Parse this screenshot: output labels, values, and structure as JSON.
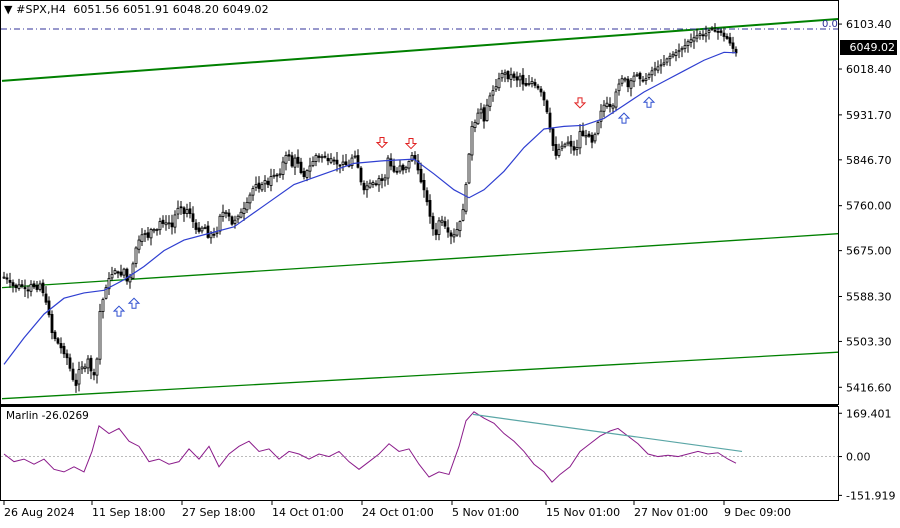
{
  "header": {
    "symbol_tf": "#SPX,H4",
    "ohlc": "6051.56 6051.91 6048.20 6049.02"
  },
  "fib_label": "0.0",
  "current_price_label": "6049.02",
  "indicator": {
    "label": "Marlin -26.0269"
  },
  "colors": {
    "background": "#ffffff",
    "candles": "#000000",
    "ma_line": "#2f3fd1",
    "channel": "#008000",
    "indicator_line": "#8b1c8b",
    "divergence_line": "#5aa6a6",
    "fib_line": "#30309a",
    "arrow_up": "#3050d0",
    "arrow_down": "#e02020"
  },
  "chart_data": [
    {
      "type": "candlestick",
      "name": "#SPX,H4",
      "y_ticks": [
        6103.4,
        6018.4,
        5931.7,
        5846.7,
        5760.0,
        5675.0,
        5588.3,
        5503.3,
        5416.6
      ],
      "y_tick_labels": [
        "6103.40",
        "6018.40",
        "5931.70",
        "5846.70",
        "5760.00",
        "5675.00",
        "5588.30",
        "5503.30",
        "5416.60"
      ],
      "ylim": [
        5385,
        6130
      ],
      "x_tick_labels": [
        "26 Aug 2024",
        "11 Sep 18:00",
        "27 Sep 18:00",
        "14 Oct 01:00",
        "24 Oct 01:00",
        "5 Nov 01:00",
        "15 Nov 01:00",
        "27 Nov 01:00",
        "9 Dec 09:00"
      ],
      "close_path": [
        [
          0,
          5625
        ],
        [
          4,
          5620
        ],
        [
          8,
          5610
        ],
        [
          12,
          5605
        ],
        [
          16,
          5612
        ],
        [
          20,
          5604
        ],
        [
          24,
          5600
        ],
        [
          28,
          5615
        ],
        [
          32,
          5598
        ],
        [
          36,
          5612
        ],
        [
          40,
          5590
        ],
        [
          44,
          5565
        ],
        [
          48,
          5520
        ],
        [
          52,
          5505
        ],
        [
          56,
          5495
        ],
        [
          60,
          5480
        ],
        [
          64,
          5470
        ],
        [
          68,
          5435
        ],
        [
          72,
          5420
        ],
        [
          76,
          5460
        ],
        [
          80,
          5450
        ],
        [
          84,
          5470
        ],
        [
          88,
          5440
        ],
        [
          92,
          5440
        ],
        [
          96,
          5560
        ],
        [
          100,
          5590
        ],
        [
          104,
          5620
        ],
        [
          108,
          5630
        ],
        [
          112,
          5640
        ],
        [
          116,
          5625
        ],
        [
          120,
          5640
        ],
        [
          124,
          5610
        ],
        [
          128,
          5640
        ],
        [
          132,
          5680
        ],
        [
          136,
          5700
        ],
        [
          140,
          5710
        ],
        [
          144,
          5700
        ],
        [
          148,
          5720
        ],
        [
          152,
          5710
        ],
        [
          156,
          5730
        ],
        [
          160,
          5725
        ],
        [
          164,
          5730
        ],
        [
          168,
          5720
        ],
        [
          172,
          5750
        ],
        [
          176,
          5760
        ],
        [
          180,
          5745
        ],
        [
          184,
          5755
        ],
        [
          188,
          5735
        ],
        [
          192,
          5715
        ],
        [
          196,
          5710
        ],
        [
          200,
          5725
        ],
        [
          204,
          5700
        ],
        [
          208,
          5710
        ],
        [
          212,
          5700
        ],
        [
          216,
          5740
        ],
        [
          220,
          5750
        ],
        [
          224,
          5745
        ],
        [
          228,
          5725
        ],
        [
          232,
          5735
        ],
        [
          236,
          5745
        ],
        [
          240,
          5755
        ],
        [
          244,
          5770
        ],
        [
          248,
          5790
        ],
        [
          252,
          5800
        ],
        [
          256,
          5790
        ],
        [
          260,
          5810
        ],
        [
          264,
          5800
        ],
        [
          268,
          5820
        ],
        [
          272,
          5815
        ],
        [
          276,
          5820
        ],
        [
          280,
          5850
        ],
        [
          284,
          5860
        ],
        [
          288,
          5835
        ],
        [
          292,
          5855
        ],
        [
          296,
          5825
        ],
        [
          300,
          5815
        ],
        [
          304,
          5830
        ],
        [
          308,
          5840
        ],
        [
          312,
          5855
        ],
        [
          316,
          5850
        ],
        [
          320,
          5855
        ],
        [
          324,
          5845
        ],
        [
          328,
          5850
        ],
        [
          332,
          5840
        ],
        [
          336,
          5835
        ],
        [
          340,
          5845
        ],
        [
          344,
          5830
        ],
        [
          348,
          5850
        ],
        [
          352,
          5855
        ],
        [
          356,
          5810
        ],
        [
          360,
          5790
        ],
        [
          364,
          5800
        ],
        [
          368,
          5805
        ],
        [
          372,
          5800
        ],
        [
          376,
          5815
        ],
        [
          380,
          5800
        ],
        [
          384,
          5850
        ],
        [
          388,
          5830
        ],
        [
          392,
          5820
        ],
        [
          396,
          5835
        ],
        [
          400,
          5825
        ],
        [
          404,
          5840
        ],
        [
          408,
          5855
        ],
        [
          412,
          5845
        ],
        [
          416,
          5810
        ],
        [
          420,
          5790
        ],
        [
          424,
          5760
        ],
        [
          428,
          5720
        ],
        [
          432,
          5705
        ],
        [
          436,
          5740
        ],
        [
          440,
          5725
        ],
        [
          444,
          5710
        ],
        [
          448,
          5700
        ],
        [
          452,
          5710
        ],
        [
          456,
          5730
        ],
        [
          460,
          5760
        ],
        [
          464,
          5840
        ],
        [
          468,
          5910
        ],
        [
          472,
          5920
        ],
        [
          476,
          5950
        ],
        [
          480,
          5920
        ],
        [
          484,
          5960
        ],
        [
          488,
          5975
        ],
        [
          492,
          5985
        ],
        [
          496,
          6005
        ],
        [
          500,
          6015
        ],
        [
          504,
          6000
        ],
        [
          508,
          6010
        ],
        [
          512,
          5995
        ],
        [
          516,
          6005
        ],
        [
          520,
          5985
        ],
        [
          524,
          5990
        ],
        [
          528,
          5995
        ],
        [
          532,
          5985
        ],
        [
          536,
          5980
        ],
        [
          540,
          5960
        ],
        [
          544,
          5930
        ],
        [
          548,
          5880
        ],
        [
          552,
          5855
        ],
        [
          556,
          5870
        ],
        [
          560,
          5875
        ],
        [
          564,
          5880
        ],
        [
          568,
          5870
        ],
        [
          572,
          5860
        ],
        [
          576,
          5900
        ],
        [
          580,
          5890
        ],
        [
          584,
          5895
        ],
        [
          588,
          5880
        ],
        [
          592,
          5900
        ],
        [
          596,
          5935
        ],
        [
          600,
          5950
        ],
        [
          604,
          5955
        ],
        [
          608,
          5940
        ],
        [
          612,
          5975
        ],
        [
          616,
          5995
        ],
        [
          620,
          6005
        ],
        [
          624,
          5985
        ],
        [
          628,
          6000
        ],
        [
          632,
          6010
        ],
        [
          636,
          6000
        ],
        [
          640,
          5995
        ],
        [
          644,
          6005
        ],
        [
          648,
          6015
        ],
        [
          652,
          6020
        ],
        [
          656,
          6025
        ],
        [
          660,
          6030
        ],
        [
          664,
          6040
        ],
        [
          668,
          6045
        ],
        [
          672,
          6050
        ],
        [
          676,
          6055
        ],
        [
          680,
          6060
        ],
        [
          684,
          6070
        ],
        [
          688,
          6075
        ],
        [
          692,
          6080
        ],
        [
          696,
          6085
        ],
        [
          700,
          6080
        ],
        [
          704,
          6090
        ],
        [
          708,
          6095
        ],
        [
          712,
          6088
        ],
        [
          716,
          6090
        ],
        [
          720,
          6080
        ],
        [
          724,
          6075
        ],
        [
          728,
          6060
        ],
        [
          732,
          6049
        ]
      ],
      "ma_path": [
        [
          0,
          5460
        ],
        [
          20,
          5510
        ],
        [
          40,
          5555
        ],
        [
          60,
          5585
        ],
        [
          80,
          5595
        ],
        [
          100,
          5600
        ],
        [
          120,
          5620
        ],
        [
          140,
          5645
        ],
        [
          160,
          5675
        ],
        [
          180,
          5695
        ],
        [
          200,
          5705
        ],
        [
          230,
          5720
        ],
        [
          260,
          5760
        ],
        [
          290,
          5800
        ],
        [
          320,
          5820
        ],
        [
          350,
          5840
        ],
        [
          380,
          5845
        ],
        [
          410,
          5848
        ],
        [
          430,
          5820
        ],
        [
          450,
          5790
        ],
        [
          465,
          5775
        ],
        [
          480,
          5790
        ],
        [
          500,
          5825
        ],
        [
          520,
          5870
        ],
        [
          540,
          5905
        ],
        [
          560,
          5910
        ],
        [
          580,
          5912
        ],
        [
          600,
          5925
        ],
        [
          620,
          5950
        ],
        [
          640,
          5975
        ],
        [
          660,
          5995
        ],
        [
          680,
          6015
        ],
        [
          700,
          6035
        ],
        [
          720,
          6050
        ],
        [
          732,
          6049
        ]
      ],
      "channel": {
        "upper": [
          [
            2,
            5996
          ],
          [
            838,
            6113
          ]
        ],
        "middle": [
          [
            2,
            5605
          ],
          [
            838,
            5707
          ]
        ],
        "lower": [
          [
            2,
            5395
          ],
          [
            838,
            5483
          ]
        ]
      },
      "fib_level": 6094,
      "up_arrows": [
        [
          115,
          5570
        ],
        [
          130,
          5585
        ],
        [
          620,
          5935
        ],
        [
          645,
          5965
        ]
      ],
      "down_arrows": [
        [
          378,
          5870
        ],
        [
          407,
          5868
        ],
        [
          576,
          5945
        ]
      ]
    },
    {
      "type": "line",
      "name": "Marlin",
      "y_tick_labels": [
        "169.401",
        "0.00",
        "-151.919"
      ],
      "y_ticks": [
        169.401,
        0,
        -151.919
      ],
      "ylim": [
        -170,
        190
      ],
      "values": [
        [
          0,
          10
        ],
        [
          10,
          -20
        ],
        [
          20,
          -10
        ],
        [
          30,
          -30
        ],
        [
          40,
          -10
        ],
        [
          50,
          -50
        ],
        [
          60,
          -60
        ],
        [
          70,
          -40
        ],
        [
          80,
          -60
        ],
        [
          88,
          20
        ],
        [
          95,
          120
        ],
        [
          105,
          90
        ],
        [
          115,
          110
        ],
        [
          125,
          60
        ],
        [
          135,
          40
        ],
        [
          145,
          -20
        ],
        [
          155,
          -10
        ],
        [
          165,
          -30
        ],
        [
          175,
          -20
        ],
        [
          185,
          30
        ],
        [
          195,
          -10
        ],
        [
          205,
          40
        ],
        [
          215,
          -40
        ],
        [
          225,
          10
        ],
        [
          235,
          40
        ],
        [
          245,
          60
        ],
        [
          255,
          20
        ],
        [
          265,
          30
        ],
        [
          275,
          -10
        ],
        [
          285,
          20
        ],
        [
          295,
          10
        ],
        [
          305,
          -10
        ],
        [
          315,
          10
        ],
        [
          325,
          0
        ],
        [
          335,
          20
        ],
        [
          345,
          -20
        ],
        [
          355,
          -50
        ],
        [
          365,
          -20
        ],
        [
          375,
          10
        ],
        [
          385,
          50
        ],
        [
          395,
          20
        ],
        [
          405,
          30
        ],
        [
          415,
          -30
        ],
        [
          425,
          -80
        ],
        [
          435,
          -60
        ],
        [
          445,
          -70
        ],
        [
          455,
          40
        ],
        [
          462,
          140
        ],
        [
          470,
          175
        ],
        [
          480,
          150
        ],
        [
          490,
          130
        ],
        [
          500,
          90
        ],
        [
          510,
          60
        ],
        [
          520,
          20
        ],
        [
          530,
          -30
        ],
        [
          540,
          -60
        ],
        [
          548,
          -100
        ],
        [
          556,
          -70
        ],
        [
          566,
          -40
        ],
        [
          576,
          20
        ],
        [
          586,
          50
        ],
        [
          596,
          80
        ],
        [
          606,
          100
        ],
        [
          614,
          110
        ],
        [
          624,
          80
        ],
        [
          634,
          50
        ],
        [
          644,
          10
        ],
        [
          654,
          0
        ],
        [
          664,
          5
        ],
        [
          674,
          0
        ],
        [
          684,
          10
        ],
        [
          694,
          20
        ],
        [
          704,
          10
        ],
        [
          714,
          15
        ],
        [
          724,
          -10
        ],
        [
          732,
          -26
        ]
      ],
      "divergence_line": [
        [
          473,
          165
        ],
        [
          742,
          20
        ]
      ]
    }
  ]
}
